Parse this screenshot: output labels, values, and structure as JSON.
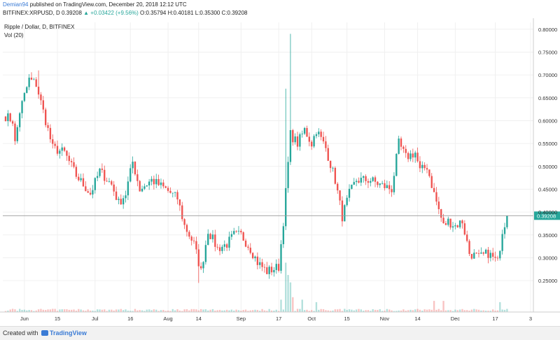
{
  "header": {
    "user": "Demian94",
    "published_text": " published on TradingView.com, December 20, 2018 12:12 UTC",
    "symbol_line": "BITFINEX:XRPUSD, D  0.39208",
    "change": " ▲ +0.03422 (+9.56%)",
    "ohlc": " O:0.35794 H:0.40181 L:0.35300 C:0.39208"
  },
  "legend": {
    "title": "Ripple / Dollar, D, BITFINEX",
    "volume": "Vol (20)"
  },
  "footer": {
    "created_with": "Created with",
    "brand": "TradingView"
  },
  "colors": {
    "up": "#26a69a",
    "down": "#ef5350",
    "price_line": "#999999",
    "grid": "#f0f0f0"
  },
  "chart_data": {
    "type": "candlestick",
    "title": "Ripple / Dollar, D, BITFINEX",
    "current_price": 0.39208,
    "current_price_label": "0.39208",
    "ylim": [
      0.215,
      0.815
    ],
    "y_ticks": [
      0.25,
      0.3,
      0.35,
      0.4,
      0.45,
      0.5,
      0.55,
      0.6,
      0.65,
      0.7,
      0.75,
      0.8
    ],
    "y_tick_labels": [
      "0.25000",
      "0.30000",
      "0.35000",
      "0.40000",
      "0.45000",
      "0.50000",
      "0.55000",
      "0.60000",
      "0.65000",
      "0.70000",
      "0.75000",
      "0.80000"
    ],
    "x_labels": [
      {
        "label": "Jun",
        "index": 8
      },
      {
        "label": "15",
        "index": 22
      },
      {
        "label": "Jul",
        "index": 38
      },
      {
        "label": "16",
        "index": 53
      },
      {
        "label": "Aug",
        "index": 69
      },
      {
        "label": "14",
        "index": 82
      },
      {
        "label": "Sep",
        "index": 100
      },
      {
        "label": "17",
        "index": 116
      },
      {
        "label": "Oct",
        "index": 130
      },
      {
        "label": "15",
        "index": 145
      },
      {
        "label": "Nov",
        "index": 161
      },
      {
        "label": "14",
        "index": 175
      },
      {
        "label": "Dec",
        "index": 191
      },
      {
        "label": "17",
        "index": 208
      },
      {
        "label": "3",
        "index": 223
      }
    ],
    "anchors": [
      [
        0,
        0.61
      ],
      [
        3,
        0.6
      ],
      [
        4,
        0.55
      ],
      [
        6,
        0.62
      ],
      [
        10,
        0.69
      ],
      [
        13,
        0.68
      ],
      [
        16,
        0.62
      ],
      [
        20,
        0.54
      ],
      [
        25,
        0.53
      ],
      [
        30,
        0.48
      ],
      [
        36,
        0.44
      ],
      [
        40,
        0.49
      ],
      [
        45,
        0.46
      ],
      [
        48,
        0.42
      ],
      [
        51,
        0.44
      ],
      [
        54,
        0.51
      ],
      [
        57,
        0.45
      ],
      [
        62,
        0.47
      ],
      [
        68,
        0.45
      ],
      [
        73,
        0.43
      ],
      [
        76,
        0.37
      ],
      [
        80,
        0.33
      ],
      [
        83,
        0.27
      ],
      [
        86,
        0.36
      ],
      [
        90,
        0.32
      ],
      [
        94,
        0.33
      ],
      [
        97,
        0.35
      ],
      [
        100,
        0.35
      ],
      [
        104,
        0.32
      ],
      [
        107,
        0.29
      ],
      [
        111,
        0.27
      ],
      [
        116,
        0.28
      ],
      [
        118,
        0.38
      ],
      [
        121,
        0.57
      ],
      [
        124,
        0.55
      ],
      [
        127,
        0.58
      ],
      [
        130,
        0.55
      ],
      [
        132,
        0.58
      ],
      [
        136,
        0.54
      ],
      [
        140,
        0.47
      ],
      [
        143,
        0.39
      ],
      [
        146,
        0.44
      ],
      [
        149,
        0.47
      ],
      [
        155,
        0.47
      ],
      [
        159,
        0.46
      ],
      [
        164,
        0.45
      ],
      [
        167,
        0.55
      ],
      [
        170,
        0.52
      ],
      [
        174,
        0.53
      ],
      [
        176,
        0.49
      ],
      [
        179,
        0.5
      ],
      [
        182,
        0.44
      ],
      [
        186,
        0.37
      ],
      [
        188,
        0.38
      ],
      [
        191,
        0.37
      ],
      [
        194,
        0.38
      ],
      [
        197,
        0.31
      ],
      [
        201,
        0.3
      ],
      [
        205,
        0.31
      ],
      [
        209,
        0.29
      ],
      [
        211,
        0.36
      ],
      [
        213,
        0.392
      ]
    ],
    "spikes": [
      {
        "index": 121,
        "high": 0.79
      },
      {
        "index": 119,
        "high": 0.67
      },
      {
        "index": 14,
        "high": 0.71
      },
      {
        "index": 82,
        "low": 0.245
      }
    ],
    "volume_spikes": [
      {
        "index": 119,
        "value": 0.4
      },
      {
        "index": 120,
        "value": 0.3
      },
      {
        "index": 121,
        "value": 0.24
      },
      {
        "index": 122,
        "value": 0.12
      },
      {
        "index": 117,
        "value": 0.1
      },
      {
        "index": 126,
        "value": 0.1
      },
      {
        "index": 132,
        "value": 0.08
      },
      {
        "index": 182,
        "value": 0.09
      },
      {
        "index": 186,
        "value": 0.09
      },
      {
        "index": 210,
        "value": 0.08
      }
    ],
    "count": 214
  }
}
